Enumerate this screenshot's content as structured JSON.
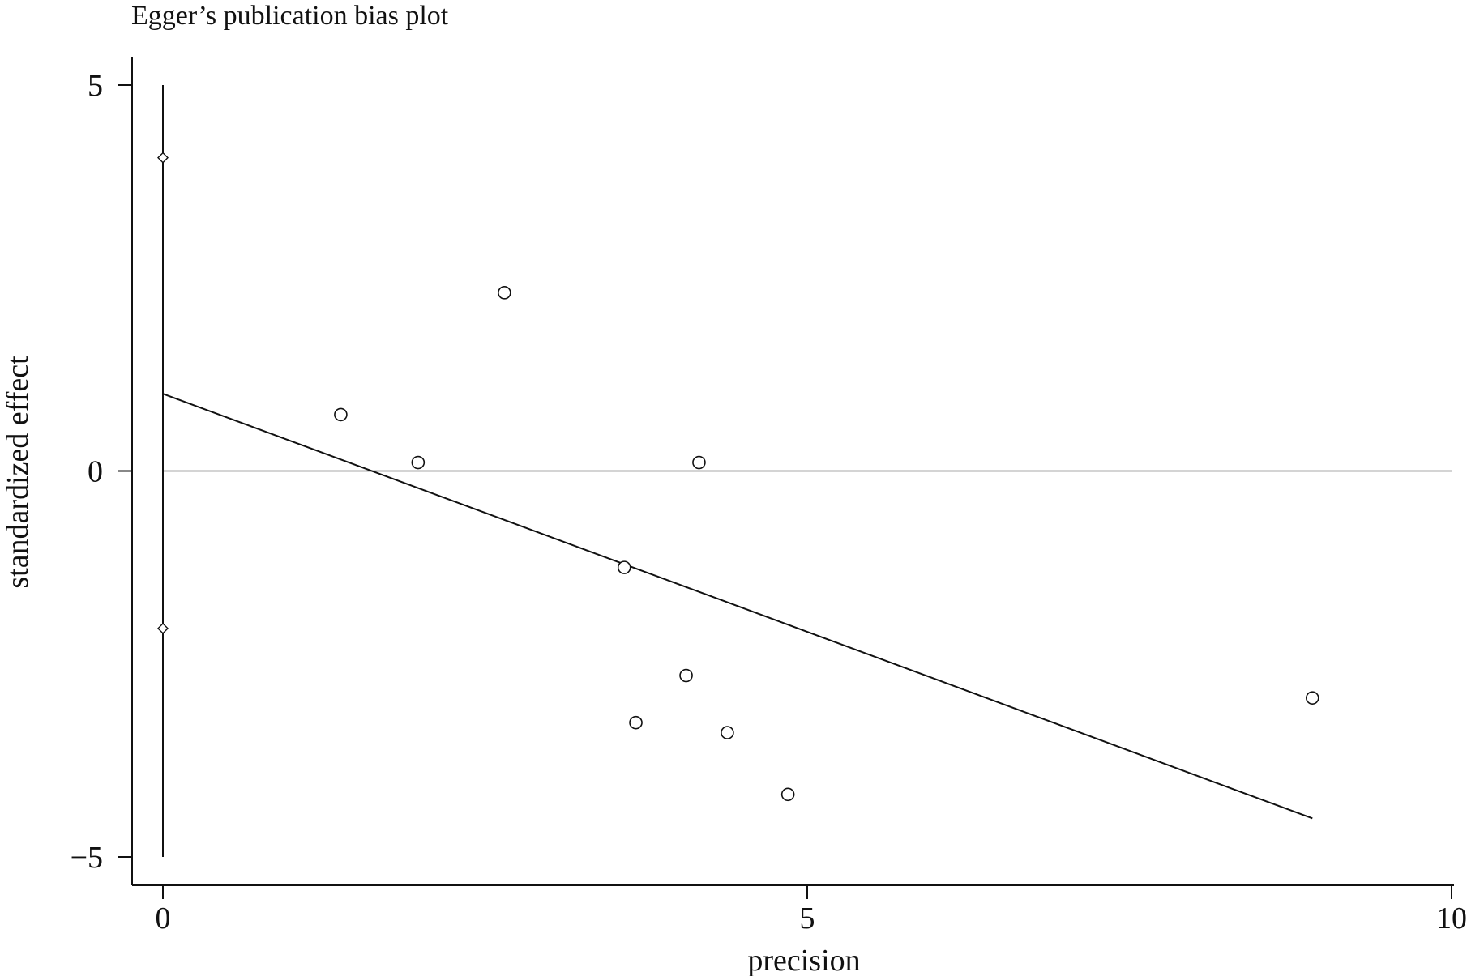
{
  "chart_data": {
    "type": "scatter",
    "title": "Egger’s publication bias plot",
    "xlabel": "precision",
    "ylabel": "standardized effect",
    "xlim": [
      0,
      10
    ],
    "ylim": [
      -5,
      5
    ],
    "x_ticks": [
      0,
      5,
      10
    ],
    "y_ticks": [
      -5,
      0,
      5
    ],
    "reference_line_y": 0,
    "points": [
      {
        "x": 1.38,
        "y": 0.73
      },
      {
        "x": 1.98,
        "y": 0.11
      },
      {
        "x": 2.65,
        "y": 2.31
      },
      {
        "x": 3.58,
        "y": -1.25
      },
      {
        "x": 3.67,
        "y": -3.26
      },
      {
        "x": 4.06,
        "y": -2.65
      },
      {
        "x": 4.16,
        "y": 0.11
      },
      {
        "x": 4.38,
        "y": -3.39
      },
      {
        "x": 4.85,
        "y": -4.19
      },
      {
        "x": 8.92,
        "y": -2.94
      }
    ],
    "regression_line": {
      "x": [
        0,
        8.92
      ],
      "y": [
        1.0,
        -4.5
      ]
    },
    "intercept_ci": {
      "x": 0,
      "lower": -5.0,
      "upper": 5.0
    },
    "intercept_markers": [
      {
        "x": 0,
        "y": 4.06
      },
      {
        "x": 0,
        "y": -2.04
      }
    ],
    "grid": false
  }
}
